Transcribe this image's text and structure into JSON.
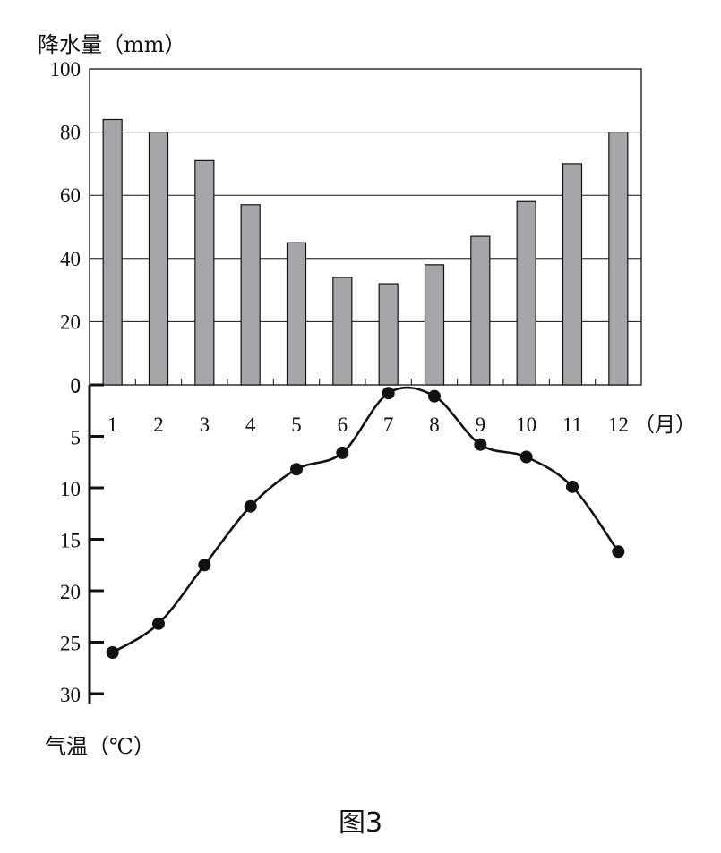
{
  "caption": "图3",
  "chart_data": [
    {
      "type": "bar",
      "ylabel": "降水量（mm）",
      "ylim": [
        0,
        100
      ],
      "yticks": [
        "0",
        "20",
        "40",
        "60",
        "80",
        "100"
      ],
      "grid": true,
      "categories": [
        "1",
        "2",
        "3",
        "4",
        "5",
        "6",
        "7",
        "8",
        "9",
        "10",
        "11",
        "12"
      ],
      "x_unit_label": "（月）",
      "values": [
        84,
        80,
        71,
        57,
        45,
        34,
        32,
        38,
        47,
        58,
        70,
        80
      ],
      "bar_color": "#a6a6aa"
    },
    {
      "type": "line",
      "ylabel": "气温（℃）",
      "ylim": [
        0,
        30
      ],
      "y_axis_inverted": true,
      "yticks": [
        "0",
        "5",
        "10",
        "15",
        "20",
        "25",
        "30"
      ],
      "x": [
        "1",
        "2",
        "3",
        "4",
        "5",
        "6",
        "7",
        "8",
        "9",
        "10",
        "11",
        "12"
      ],
      "values": [
        26,
        23.2,
        17.5,
        11.8,
        8.2,
        6.6,
        0.8,
        1.1,
        5.8,
        7,
        9.9,
        16.2
      ],
      "line_color": "#111111"
    }
  ]
}
